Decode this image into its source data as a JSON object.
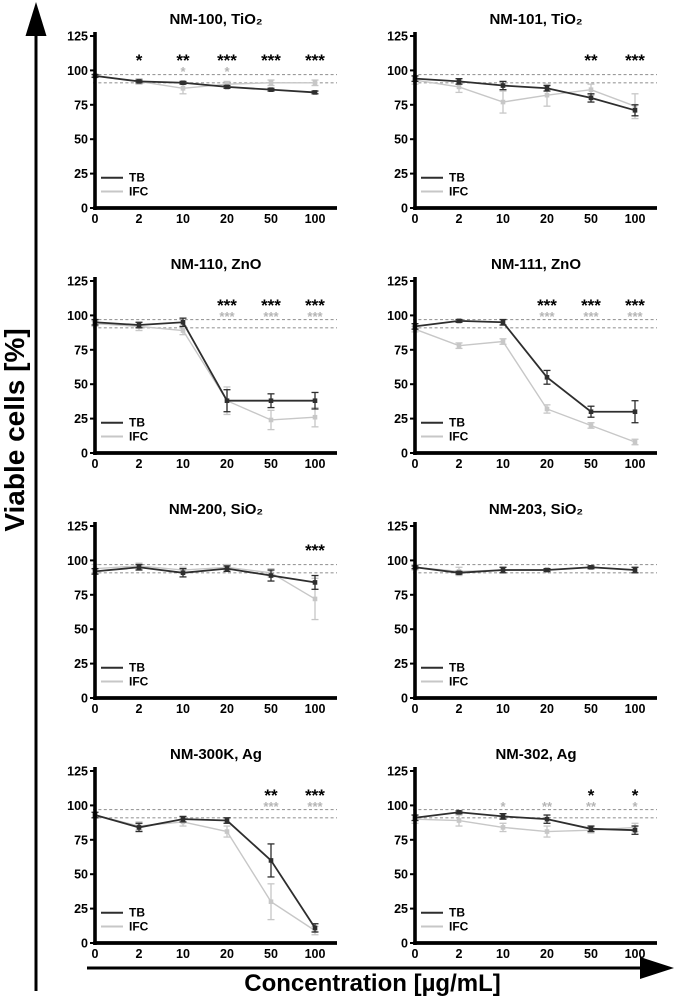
{
  "chart_data": {
    "type": "line",
    "xlabel": "Concentration [µg/mL]",
    "ylabel": "Viable cells [%]",
    "x_categories": [
      "0",
      "2",
      "10",
      "20",
      "50",
      "100"
    ],
    "ylim": [
      0,
      125
    ],
    "yticks": [
      "0",
      "25",
      "50",
      "75",
      "100",
      "125"
    ],
    "reference_lines": [
      97,
      91
    ],
    "legend": [
      "TB",
      "IFC"
    ],
    "legend_position": "lower-left",
    "grid": "off",
    "colors": {
      "tb": "#2e2e2e",
      "ifc": "#c7c7c7",
      "reference": "#9a9a9a",
      "sig_tb": "#000000",
      "sig_ifc": "#b5b5b5",
      "axis": "#000000"
    },
    "panels": [
      {
        "title": "NM-100, TiO₂",
        "series": [
          {
            "name": "TB",
            "values": [
              96,
              92,
              91,
              88,
              86,
              84
            ],
            "errors": [
              1,
              1,
              1,
              1,
              1,
              1
            ]
          },
          {
            "name": "IFC",
            "values": [
              96,
              92,
              87,
              90,
              91,
              91
            ],
            "errors": [
              1,
              2,
              4,
              2,
              2,
              2
            ]
          }
        ],
        "sig_tb": [
          "",
          "*",
          "**",
          "***",
          "***",
          "***"
        ],
        "sig_ifc": [
          "",
          "",
          "*",
          "*",
          "",
          ""
        ]
      },
      {
        "title": "NM-101, TiO₂",
        "series": [
          {
            "name": "TB",
            "values": [
              94,
              92,
              89,
              87,
              80,
              71
            ],
            "errors": [
              2,
              2,
              3,
              2,
              3,
              4
            ]
          },
          {
            "name": "IFC",
            "values": [
              93,
              88,
              77,
              82,
              86,
              74
            ],
            "errors": [
              3,
              4,
              8,
              8,
              4,
              9
            ]
          }
        ],
        "sig_tb": [
          "",
          "",
          "",
          "",
          "**",
          "***"
        ],
        "sig_ifc": [
          "",
          "",
          "",
          "",
          "",
          ""
        ]
      },
      {
        "title": "NM-110, ZnO",
        "series": [
          {
            "name": "TB",
            "values": [
              95,
              93,
              95,
              38,
              38,
              38
            ],
            "errors": [
              2,
              2,
              3,
              8,
              5,
              6
            ]
          },
          {
            "name": "IFC",
            "values": [
              94,
              92,
              89,
              38,
              24,
              26
            ],
            "errors": [
              2,
              3,
              3,
              10,
              7,
              7
            ]
          }
        ],
        "sig_tb": [
          "",
          "",
          "",
          "***",
          "***",
          "***"
        ],
        "sig_ifc": [
          "",
          "",
          "",
          "***",
          "***",
          "***"
        ]
      },
      {
        "title": "NM-111, ZnO",
        "series": [
          {
            "name": "TB",
            "values": [
              92,
              96,
              95,
              55,
              30,
              30
            ],
            "errors": [
              2,
              1,
              2,
              5,
              4,
              8
            ]
          },
          {
            "name": "IFC",
            "values": [
              90,
              78,
              81,
              32,
              20,
              8
            ],
            "errors": [
              2,
              2,
              2,
              3,
              2,
              2
            ]
          }
        ],
        "sig_tb": [
          "",
          "",
          "",
          "***",
          "***",
          "***"
        ],
        "sig_ifc": [
          "",
          "",
          "",
          "***",
          "***",
          "***"
        ]
      },
      {
        "title": "NM-200, SiO₂",
        "series": [
          {
            "name": "TB",
            "values": [
              92,
              95,
              91,
              94,
              89,
              84
            ],
            "errors": [
              2,
              2,
              3,
              2,
              4,
              5
            ]
          },
          {
            "name": "IFC",
            "values": [
              94,
              96,
              93,
              95,
              91,
              72
            ],
            "errors": [
              3,
              2,
              2,
              2,
              3,
              15
            ]
          }
        ],
        "sig_tb": [
          "",
          "",
          "",
          "",
          "",
          "***"
        ],
        "sig_ifc": [
          "",
          "",
          "",
          "",
          "",
          ""
        ]
      },
      {
        "title": "NM-203, SiO₂",
        "series": [
          {
            "name": "TB",
            "values": [
              95,
              91,
              93,
              93,
              95,
              93
            ],
            "errors": [
              1,
              1,
              2,
              1,
              1,
              2
            ]
          },
          {
            "name": "IFC",
            "values": [
              95,
              92,
              93,
              93,
              95,
              93
            ],
            "errors": [
              2,
              3,
              2,
              1,
              1,
              2
            ]
          }
        ],
        "sig_tb": [
          "",
          "",
          "",
          "",
          "",
          ""
        ],
        "sig_ifc": [
          "",
          "",
          "",
          "",
          "",
          ""
        ]
      },
      {
        "title": "NM-300K, Ag",
        "series": [
          {
            "name": "TB",
            "values": [
              93,
              84,
              90,
              89,
              60,
              11
            ],
            "errors": [
              2,
              3,
              2,
              2,
              12,
              3
            ]
          },
          {
            "name": "IFC",
            "values": [
              93,
              85,
              88,
              81,
              30,
              9
            ],
            "errors": [
              2,
              3,
              3,
              4,
              13,
              3
            ]
          }
        ],
        "sig_tb": [
          "",
          "",
          "",
          "",
          "**",
          "***"
        ],
        "sig_ifc": [
          "",
          "",
          "",
          "",
          "***",
          "***"
        ]
      },
      {
        "title": "NM-302, Ag",
        "series": [
          {
            "name": "TB",
            "values": [
              91,
              95,
              92,
              90,
              83,
              82
            ],
            "errors": [
              2,
              1,
              2,
              3,
              2,
              3
            ]
          },
          {
            "name": "IFC",
            "values": [
              90,
              89,
              84,
              81,
              82,
              84
            ],
            "errors": [
              3,
              4,
              3,
              4,
              2,
              3
            ]
          }
        ],
        "sig_tb": [
          "",
          "",
          "",
          "",
          "*",
          "*"
        ],
        "sig_ifc": [
          "",
          "",
          "*",
          "**",
          "**",
          "*"
        ]
      }
    ]
  }
}
